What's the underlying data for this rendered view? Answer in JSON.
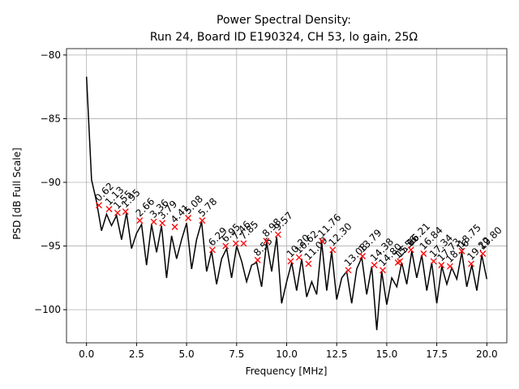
{
  "chart_data": {
    "type": "line",
    "title": "Power Spectral Density:",
    "subtitle": "Run 24, Board ID E190324, CH 53, lo gain, 25Ω",
    "x_label": "Frequency [MHz]",
    "y_label": "PSD [dB Full Scale]",
    "xlim": [
      -1,
      21
    ],
    "ylim": [
      -102.6,
      -79.5
    ],
    "xticks": [
      {
        "value": 0,
        "label": "0.0"
      },
      {
        "value": 2.5,
        "label": "2.5"
      },
      {
        "value": 5,
        "label": "5.0"
      },
      {
        "value": 7.5,
        "label": "7.5"
      },
      {
        "value": 10,
        "label": "10.0"
      },
      {
        "value": 12.5,
        "label": "12.5"
      },
      {
        "value": 15,
        "label": "15.0"
      },
      {
        "value": 17.5,
        "label": "17.5"
      },
      {
        "value": 20,
        "label": "20.0"
      }
    ],
    "yticks": [
      {
        "value": -100,
        "label": "−100"
      },
      {
        "value": -95,
        "label": "−95"
      },
      {
        "value": -90,
        "label": "−90"
      },
      {
        "value": -85,
        "label": "−85"
      },
      {
        "value": -80,
        "label": "−80"
      }
    ],
    "grid": true,
    "series": [
      {
        "color": "#000000",
        "x": [
          0,
          0.25,
          0.5,
          0.75,
          1,
          1.25,
          1.5,
          1.75,
          2,
          2.25,
          2.5,
          2.75,
          3,
          3.25,
          3.5,
          3.75,
          4,
          4.25,
          4.5,
          4.75,
          5,
          5.25,
          5.5,
          5.75,
          6,
          6.25,
          6.5,
          6.75,
          7,
          7.25,
          7.5,
          7.75,
          8,
          8.25,
          8.5,
          8.75,
          9,
          9.25,
          9.5,
          9.75,
          10,
          10.25,
          10.5,
          10.75,
          11,
          11.25,
          11.5,
          11.75,
          12,
          12.25,
          12.5,
          12.75,
          13,
          13.25,
          13.5,
          13.75,
          14,
          14.25,
          14.5,
          14.75,
          15,
          15.25,
          15.5,
          15.75,
          16,
          16.25,
          16.5,
          16.75,
          17,
          17.25,
          17.5,
          17.75,
          18,
          18.25,
          18.5,
          18.75,
          19,
          19.25,
          19.5,
          19.75,
          20
        ],
        "values": [
          -81.7,
          -89.8,
          -91.5,
          -93.8,
          -92.5,
          -93.4,
          -92.6,
          -94.5,
          -92.4,
          -95.2,
          -94.0,
          -93.3,
          -96.5,
          -93.3,
          -95.5,
          -93.4,
          -97.5,
          -94.2,
          -96.0,
          -94.5,
          -93.2,
          -96.8,
          -94.5,
          -93.1,
          -97.0,
          -95.4,
          -98.0,
          -96.0,
          -95.2,
          -97.5,
          -95.0,
          -96.2,
          -97.8,
          -96.5,
          -96.3,
          -98.2,
          -94.7,
          -97.0,
          -94.3,
          -99.5,
          -97.8,
          -96.3,
          -98.5,
          -96.0,
          -99.0,
          -97.8,
          -98.8,
          -94.7,
          -98.5,
          -95.4,
          -99.2,
          -97.5,
          -97.0,
          -99.5,
          -96.8,
          -95.9,
          -98.8,
          -96.6,
          -101.6,
          -97.0,
          -99.6,
          -97.5,
          -98.2,
          -96.3,
          -98.0,
          -95.4,
          -97.5,
          -95.7,
          -98.5,
          -96.3,
          -99.5,
          -96.6,
          -98.0,
          -96.7,
          -97.6,
          -95.5,
          -98.2,
          -96.5,
          -98.5,
          -95.7,
          -97.6
        ]
      },
      {
        "color": "#ff0000",
        "x": [
          0.62,
          1.13,
          1.55,
          1.95,
          2.66,
          3.36,
          3.79,
          4.41,
          5.08,
          5.78,
          6.29,
          6.95,
          7.46,
          7.85,
          8.55,
          8.98,
          9.57,
          10.2,
          10.62,
          11.09,
          11.76,
          12.3,
          13.08,
          13.79,
          14.38,
          14.8,
          15.56,
          15.66,
          16.21,
          16.84,
          17.34,
          17.73,
          18.16,
          18.75,
          19.22,
          19.8
        ],
        "x_labels": [
          "0.62",
          "1.13",
          "1.55",
          "1.95",
          "2.66",
          "3.36",
          "3.79",
          "4.41",
          "5.08",
          "5.78",
          "6.29",
          "6.95",
          "7.46",
          "7.85",
          "8.55",
          "8.98",
          "9.57",
          "10.20",
          "10.62",
          "11.09",
          "11.76",
          "12.30",
          "13.08",
          "13.79",
          "14.38",
          "14.80",
          "15.56",
          "15.66",
          "16.21",
          "16.84",
          "17.34",
          "17.73",
          "18.16",
          "18.75",
          "19.22",
          "19.80"
        ],
        "values": [
          -91.8,
          -92.1,
          -92.4,
          -92.3,
          -93.0,
          -93.1,
          -93.2,
          -93.5,
          -92.8,
          -93.0,
          -95.3,
          -95.0,
          -94.8,
          -94.8,
          -96.1,
          -94.6,
          -94.1,
          -96.2,
          -95.9,
          -96.4,
          -94.6,
          -95.3,
          -96.9,
          -95.8,
          -96.5,
          -96.9,
          -96.3,
          -96.2,
          -95.3,
          -95.6,
          -96.2,
          -96.5,
          -96.6,
          -95.4,
          -96.4,
          -95.6
        ]
      }
    ]
  }
}
